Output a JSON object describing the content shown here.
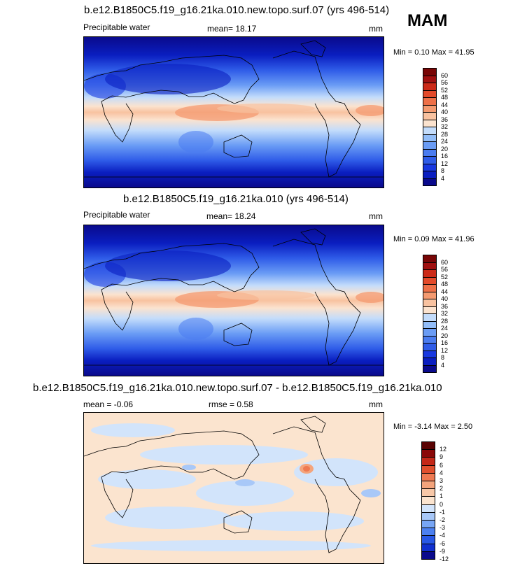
{
  "season": "MAM",
  "panels": [
    {
      "title": "b.e12.B1850C5.f19_g16.21ka.010.new.topo.surf.07 (yrs 496-514)",
      "left_label": "Precipitable water",
      "mean_label": "mean=  18.17",
      "units": "mm",
      "minmax": "Min =   0.10 Max =  41.95",
      "colorbar_labels": [
        "60",
        "56",
        "52",
        "48",
        "44",
        "40",
        "36",
        "32",
        "28",
        "24",
        "20",
        "16",
        "12",
        "8",
        "4"
      ]
    },
    {
      "title": "b.e12.B1850C5.f19_g16.21ka.010 (yrs 496-514)",
      "left_label": "Precipitable water",
      "mean_label": "mean=  18.24",
      "units": "mm",
      "minmax": "Min =   0.09 Max =  41.96",
      "colorbar_labels": [
        "60",
        "56",
        "52",
        "48",
        "44",
        "40",
        "36",
        "32",
        "28",
        "24",
        "20",
        "16",
        "12",
        "8",
        "4"
      ]
    },
    {
      "title": "b.e12.B1850C5.f19_g16.21ka.010.new.topo.surf.07 - b.e12.B1850C5.f19_g16.21ka.010",
      "left_label": "mean =  -0.06",
      "mean_label": "rmse =   0.58",
      "units": "mm",
      "minmax": "Min =  -3.14 Max =   2.50",
      "colorbar_labels": [
        "12",
        "9",
        "6",
        "4",
        "3",
        "2",
        "1",
        "0",
        "-1",
        "-2",
        "-3",
        "-4",
        "-6",
        "-9",
        "-12"
      ]
    }
  ],
  "colors": {
    "abs_scale": [
      "#0a0a8c",
      "#0a1ec0",
      "#1838e0",
      "#2f5ce8",
      "#4a7cf0",
      "#6a9cf5",
      "#92bdf8",
      "#c3dcfb",
      "#fbe3cf",
      "#f8c2a0",
      "#f49a70",
      "#ee7048",
      "#e34a2a",
      "#cc2a18",
      "#a01010",
      "#780606"
    ],
    "diff_scale": [
      "#0a0a8c",
      "#1030d0",
      "#2858e6",
      "#4c80f0",
      "#78a6f5",
      "#a8c8f8",
      "#d2e4fb",
      "#fbe4cf",
      "#f8c8a8",
      "#f4a47c",
      "#ee7a52",
      "#e0502e",
      "#c42818",
      "#8a0808"
    ]
  }
}
